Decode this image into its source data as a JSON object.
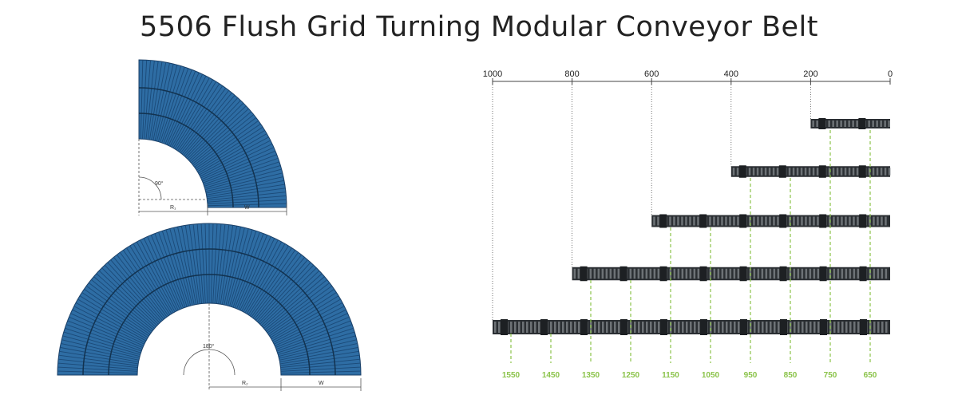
{
  "title": "5506 Flush Grid Turning Modular Conveyor Belt",
  "colors": {
    "belt_blue": "#2e6da4",
    "belt_dark": "#1b3f66",
    "belt_chain": "#2b2f33",
    "green_guide": "#8bc34a",
    "dim_line": "#555555"
  },
  "quarter_turn": {
    "angle_label": "90°",
    "radius_label": "R₁",
    "width_label": "W"
  },
  "half_turn": {
    "angle_label": "180°",
    "radius_label": "R₂",
    "width_label": "W"
  },
  "top_scale": [
    "1000",
    "800",
    "600",
    "400",
    "200",
    "0"
  ],
  "bottom_scale": [
    "1550",
    "1450",
    "1350",
    "1250",
    "1150",
    "1050",
    "950",
    "850",
    "750",
    "650"
  ],
  "belt_rows": [
    {
      "start_mm": 200
    },
    {
      "start_mm": 400
    },
    {
      "start_mm": 600
    },
    {
      "start_mm": 800
    },
    {
      "start_mm": 1000
    }
  ]
}
